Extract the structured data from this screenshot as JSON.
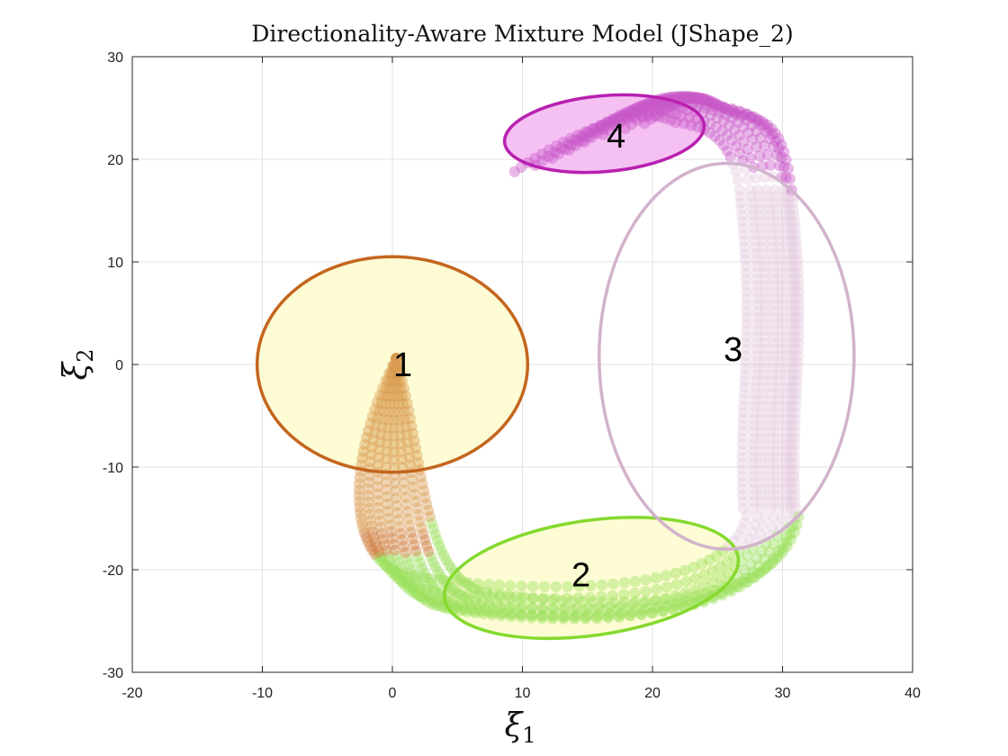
{
  "chart_data": {
    "type": "scatter",
    "title": "Directionality-Aware Mixture Model (JShape_2)",
    "xlabel": "ξ1",
    "ylabel": "ξ2",
    "xlabel_sub": "1",
    "ylabel_sub": "2",
    "xlim": [
      -20,
      40
    ],
    "ylim": [
      -30,
      30
    ],
    "xticks": [
      -20,
      -10,
      0,
      10,
      20,
      30,
      40
    ],
    "yticks": [
      -30,
      -20,
      -10,
      0,
      10,
      20,
      30
    ],
    "grid": true,
    "components": [
      {
        "label": "1",
        "center": [
          0,
          0
        ],
        "semi_axes": [
          10.4,
          10.5
        ],
        "angle_deg": 0,
        "edge_color": "#c4661f",
        "fill_color": "#fdfbcc",
        "point_color": "#d99a4e",
        "label_pos": [
          0.8,
          0
        ]
      },
      {
        "label": "2",
        "center": [
          15.3,
          -20.8
        ],
        "semi_axes": [
          11.4,
          5.6
        ],
        "angle_deg": 8,
        "edge_color": "#85d92e",
        "fill_color": "#fdfbcc",
        "point_color": "#9be05a",
        "label_pos": [
          14.5,
          -20.5
        ]
      },
      {
        "label": "3",
        "center": [
          25.7,
          0.8
        ],
        "semi_axes": [
          9.8,
          18.8
        ],
        "angle_deg": 0,
        "edge_color": "#d2b2cc",
        "fill_color": "none",
        "point_color": "#e5ccdf",
        "label_pos": [
          26.2,
          1.5
        ]
      },
      {
        "label": "4",
        "center": [
          16.3,
          22.5
        ],
        "semi_axes": [
          7.7,
          3.7
        ],
        "angle_deg": 5,
        "edge_color": "#b820b0",
        "fill_color": "#f3b6f1",
        "point_color": "#c858c9",
        "label_pos": [
          17.2,
          22.3
        ]
      }
    ],
    "trajectories": [
      {
        "start": [
          9.4,
          18.8
        ],
        "mid": [
          21.8,
          23.6
        ],
        "right_x": 27.3,
        "bottom_y": -22.0,
        "end": [
          0.3,
          0.6
        ]
      },
      {
        "start": [
          11.0,
          19.4
        ],
        "mid": [
          22.2,
          24.2
        ],
        "right_x": 28.1,
        "bottom_y": -23.2,
        "end": [
          0.3,
          0.6
        ]
      },
      {
        "start": [
          12.3,
          20.1
        ],
        "mid": [
          22.7,
          24.8
        ],
        "right_x": 28.7,
        "bottom_y": -24.3,
        "end": [
          0.3,
          0.6
        ]
      },
      {
        "start": [
          13.6,
          20.9
        ],
        "mid": [
          23.4,
          25.1
        ],
        "right_x": 29.4,
        "bottom_y": -25.0,
        "end": [
          0.3,
          0.6
        ]
      },
      {
        "start": [
          14.8,
          21.7
        ],
        "mid": [
          24.1,
          25.3
        ],
        "right_x": 30.0,
        "bottom_y": -25.3,
        "end": [
          0.3,
          0.6
        ]
      },
      {
        "start": [
          16.2,
          22.4
        ],
        "mid": [
          24.9,
          25.2
        ],
        "right_x": 30.7,
        "bottom_y": -25.1,
        "end": [
          0.3,
          0.6
        ]
      },
      {
        "start": [
          17.9,
          23.0
        ],
        "mid": [
          25.6,
          24.9
        ],
        "right_x": 31.0,
        "bottom_y": -24.4,
        "end": [
          0.3,
          0.6
        ]
      },
      {
        "start": [
          19.4,
          23.5
        ],
        "mid": [
          26.4,
          24.4
        ],
        "right_x": 31.3,
        "bottom_y": -23.6,
        "end": [
          0.3,
          0.6
        ]
      }
    ]
  }
}
